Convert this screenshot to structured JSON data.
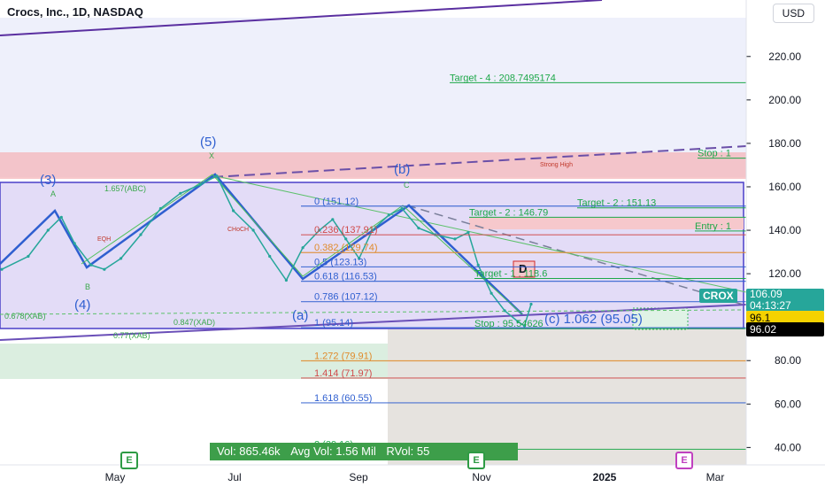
{
  "header": {
    "title": "Crocs, Inc., 1D, NASDAQ",
    "currency": "USD"
  },
  "chart_data": {
    "type": "line",
    "symbol": "CROX",
    "ylim": [
      32,
      246
    ],
    "x_ticks": [
      "May",
      "Jul",
      "Sep",
      "Nov",
      "2025",
      "Mar"
    ],
    "y_ticks": [
      40,
      60,
      80,
      100,
      120,
      140,
      160,
      180,
      200,
      220
    ],
    "price": [
      {
        "t": 0,
        "v": 122
      },
      {
        "t": 8,
        "v": 128
      },
      {
        "t": 14,
        "v": 140
      },
      {
        "t": 18,
        "v": 146
      },
      {
        "t": 22,
        "v": 134
      },
      {
        "t": 27,
        "v": 124
      },
      {
        "t": 31,
        "v": 122
      },
      {
        "t": 36,
        "v": 127
      },
      {
        "t": 42,
        "v": 138
      },
      {
        "t": 48,
        "v": 150
      },
      {
        "t": 54,
        "v": 157
      },
      {
        "t": 60,
        "v": 161
      },
      {
        "t": 65,
        "v": 165
      },
      {
        "t": 70,
        "v": 149
      },
      {
        "t": 76,
        "v": 140
      },
      {
        "t": 81,
        "v": 128
      },
      {
        "t": 86,
        "v": 117
      },
      {
        "t": 91,
        "v": 132
      },
      {
        "t": 96,
        "v": 140
      },
      {
        "t": 100,
        "v": 145
      },
      {
        "t": 104,
        "v": 136
      },
      {
        "t": 108,
        "v": 127
      },
      {
        "t": 112,
        "v": 140
      },
      {
        "t": 117,
        "v": 147
      },
      {
        "t": 121,
        "v": 150
      },
      {
        "t": 126,
        "v": 141
      },
      {
        "t": 131,
        "v": 138
      },
      {
        "t": 137,
        "v": 136
      },
      {
        "t": 141,
        "v": 139
      },
      {
        "t": 144,
        "v": 124
      },
      {
        "t": 148,
        "v": 111
      },
      {
        "t": 152,
        "v": 103
      },
      {
        "t": 156,
        "v": 98
      },
      {
        "t": 158,
        "v": 96
      },
      {
        "t": 160,
        "v": 106
      }
    ],
    "wave_labels": [
      "(3)",
      "(4)",
      "(5)",
      "(a)",
      "(b)",
      "(c) 1.062 (95.05)"
    ],
    "fib_levels": [
      {
        "label": "0 (151.12)",
        "value": 151.12
      },
      {
        "label": "0.236 (137.91)",
        "value": 137.91
      },
      {
        "label": "0.382 (129.74)",
        "value": 129.74
      },
      {
        "label": "0.5 (123.13)",
        "value": 123.13
      },
      {
        "label": "0.618 (116.53)",
        "value": 116.53
      },
      {
        "label": "0.786 (107.12)",
        "value": 107.12
      },
      {
        "label": "1 (95.14)",
        "value": 95.14
      },
      {
        "label": "1.272 (79.91)",
        "value": 79.91
      },
      {
        "label": "1.414 (71.97)",
        "value": 71.97
      },
      {
        "label": "1.618 (60.55)",
        "value": 60.55
      },
      {
        "label": "2 (39.16)",
        "value": 39.16
      }
    ],
    "targets": [
      {
        "label": "Target - 4 : 208.7495174",
        "value": 208.75
      },
      {
        "label": "Target - 2 : 151.13",
        "value": 151.13
      },
      {
        "label": "Target - 2 : 146.79",
        "value": 146.79
      },
      {
        "label": "Target - 1 : 118.6",
        "value": 118.6
      },
      {
        "label": "Entry : 1",
        "value": 140.5
      },
      {
        "label": "Stop : 95.54626",
        "value": 95.55
      },
      {
        "label": "Stop : 1",
        "value": 174
      }
    ],
    "misc_labels": [
      "Strong High",
      "1.657(ABC)",
      "0.678(XAB)",
      "0.847(XAD)",
      "0.77(XAB)",
      "EQH",
      "CHoCH",
      "B",
      "C",
      "X",
      "A",
      "D"
    ],
    "last_price": 106.09,
    "countdown": "04:13:27",
    "level_yellow": 96.1,
    "level_black": 96.02
  },
  "volume": {
    "vol": "Vol: 865.46k",
    "avg": "Avg Vol: 1.56 Mil",
    "rvol": "RVol: 55"
  },
  "events": [
    "E",
    "E",
    "E"
  ],
  "colors": {
    "up": "#26a69a",
    "wave": "#2f5fd0",
    "fib": "#2f5fd0",
    "target": "#1ea84a",
    "red_zone": "#f29ca0"
  }
}
